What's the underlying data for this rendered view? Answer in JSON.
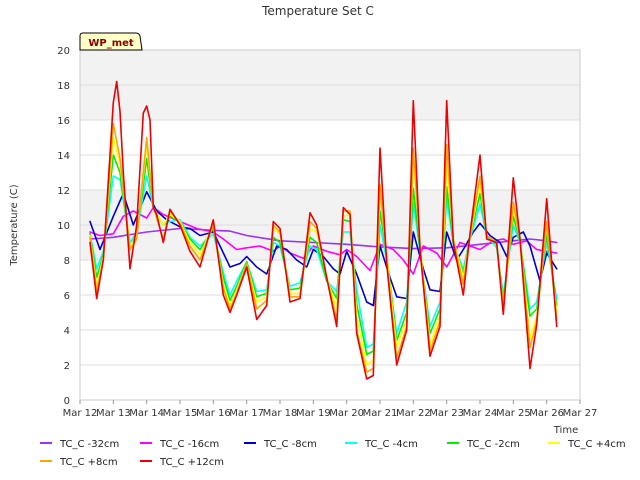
{
  "chart_data": {
    "type": "line",
    "title": "Temperature Set C",
    "xlabel": "Time",
    "ylabel": "Temperature (C)",
    "ylim": [
      0,
      20
    ],
    "xlim": [
      12,
      27
    ],
    "yticks": [
      0,
      2,
      4,
      6,
      8,
      10,
      12,
      14,
      16,
      18,
      20
    ],
    "xticks": [
      12,
      13,
      14,
      15,
      16,
      17,
      18,
      19,
      20,
      21,
      22,
      23,
      24,
      25,
      26,
      27
    ],
    "xtick_labels": [
      "Mar 12",
      "Mar 13",
      "Mar 14",
      "Mar 15",
      "Mar 16",
      "Mar 17",
      "Mar 18",
      "Mar 19",
      "Mar 20",
      "Mar 21",
      "Mar 22",
      "Mar 23",
      "Mar 24",
      "Mar 25",
      "Mar 26",
      "Mar 27"
    ],
    "shaded_bands": [
      [
        8,
        12
      ],
      [
        16,
        20
      ]
    ],
    "badge": "WP_met",
    "legend_position": "bottom",
    "series": [
      {
        "name": "TC_C -32cm",
        "color": "#9b30ff",
        "x": [
          12.3,
          13,
          14,
          15,
          16,
          16.5,
          17,
          18,
          19,
          20,
          21,
          22,
          23,
          24,
          25,
          25.5,
          26,
          26.3
        ],
        "y": [
          9.2,
          9.3,
          9.6,
          9.8,
          9.7,
          9.65,
          9.4,
          9.1,
          9.0,
          8.9,
          8.75,
          8.65,
          8.7,
          8.9,
          9.1,
          9.2,
          9.1,
          9.0
        ]
      },
      {
        "name": "TC_C -16cm",
        "color": "#ff00ff",
        "x": [
          12.3,
          12.6,
          13.0,
          13.3,
          13.6,
          14.0,
          14.2,
          14.5,
          15.0,
          15.5,
          16.0,
          16.3,
          16.7,
          17.0,
          17.4,
          17.8,
          18.0,
          18.3,
          18.7,
          19.0,
          19.4,
          19.8,
          20.0,
          20.3,
          20.7,
          21.0,
          21.4,
          21.7,
          22.0,
          22.3,
          22.7,
          23.0,
          23.4,
          23.7,
          24.0,
          24.4,
          24.7,
          25.0,
          25.4,
          25.7,
          26.0,
          26.3
        ],
        "y": [
          9.6,
          9.4,
          9.5,
          10.5,
          10.8,
          10.4,
          11.0,
          10.6,
          10.2,
          9.8,
          9.6,
          9.2,
          8.6,
          8.7,
          8.8,
          8.5,
          8.8,
          8.4,
          8.1,
          8.8,
          8.5,
          8.3,
          8.6,
          8.2,
          7.4,
          8.9,
          8.6,
          8.0,
          7.2,
          8.8,
          8.4,
          7.6,
          9.0,
          8.8,
          8.6,
          9.1,
          9.2,
          8.9,
          9.1,
          8.6,
          8.5,
          8.4
        ]
      },
      {
        "name": "TC_C -8cm",
        "color": "#0000cd",
        "x": [
          12.3,
          12.6,
          13.0,
          13.3,
          13.6,
          14.0,
          14.3,
          14.6,
          15.0,
          15.3,
          15.6,
          16.0,
          16.2,
          16.5,
          16.8,
          17.0,
          17.3,
          17.6,
          17.9,
          18.2,
          18.5,
          18.8,
          19.0,
          19.3,
          19.6,
          19.8,
          20.0,
          20.3,
          20.6,
          20.8,
          21.0,
          21.3,
          21.5,
          21.8,
          22.0,
          22.3,
          22.5,
          22.8,
          23.0,
          23.3,
          23.5,
          23.8,
          24.0,
          24.3,
          24.6,
          24.8,
          25.0,
          25.3,
          25.5,
          25.8,
          26.0,
          26.3
        ],
        "y": [
          10.2,
          8.6,
          10.5,
          11.8,
          10.0,
          11.9,
          10.8,
          10.3,
          9.9,
          9.8,
          9.4,
          9.6,
          8.8,
          7.6,
          7.8,
          8.2,
          7.6,
          7.2,
          8.8,
          8.6,
          8.0,
          7.6,
          8.6,
          8.2,
          7.5,
          7.2,
          8.5,
          7.2,
          5.6,
          5.4,
          8.8,
          7.0,
          5.9,
          5.8,
          9.6,
          7.5,
          6.3,
          6.2,
          9.6,
          8.0,
          8.6,
          9.6,
          10.1,
          9.4,
          9.0,
          8.2,
          9.3,
          9.6,
          8.8,
          6.8,
          8.4,
          7.5
        ]
      },
      {
        "name": "TC_C -4cm",
        "color": "#00ffff",
        "x": [
          12.3,
          12.5,
          12.7,
          13.0,
          13.2,
          13.5,
          13.7,
          14.0,
          14.2,
          14.5,
          14.7,
          15.0,
          15.3,
          15.6,
          16.0,
          16.3,
          16.5,
          16.7,
          17.0,
          17.3,
          17.6,
          17.8,
          18.0,
          18.3,
          18.6,
          18.9,
          19.1,
          19.4,
          19.7,
          19.9,
          20.1,
          20.3,
          20.6,
          20.8,
          21.0,
          21.2,
          21.5,
          21.8,
          22.0,
          22.2,
          22.5,
          22.8,
          23.0,
          23.2,
          23.5,
          23.7,
          24.0,
          24.2,
          24.5,
          24.7,
          25.0,
          25.2,
          25.5,
          25.7,
          26.0,
          26.3
        ],
        "y": [
          9.5,
          7.5,
          8.5,
          12.8,
          12.6,
          9.0,
          9.6,
          12.8,
          11.0,
          10.0,
          10.2,
          10.3,
          9.3,
          8.8,
          9.5,
          7.3,
          6.0,
          6.8,
          7.9,
          6.2,
          6.3,
          9.0,
          8.8,
          6.5,
          6.7,
          8.8,
          8.6,
          6.8,
          6.2,
          9.6,
          9.6,
          6.3,
          3.0,
          3.2,
          10.0,
          8.0,
          3.8,
          5.6,
          11.3,
          8.5,
          4.2,
          5.6,
          11.5,
          8.9,
          7.5,
          9.2,
          11.2,
          9.4,
          8.7,
          6.0,
          10.0,
          9.0,
          5.2,
          5.6,
          9.0,
          5.8
        ]
      },
      {
        "name": "TC_C -2cm",
        "color": "#00ee00",
        "x": [
          12.3,
          12.5,
          12.7,
          13.0,
          13.2,
          13.5,
          13.7,
          14.0,
          14.2,
          14.5,
          14.7,
          15.0,
          15.3,
          15.6,
          16.0,
          16.3,
          16.5,
          16.7,
          17.0,
          17.3,
          17.6,
          17.8,
          18.0,
          18.3,
          18.6,
          18.9,
          19.1,
          19.4,
          19.7,
          19.9,
          20.1,
          20.3,
          20.6,
          20.8,
          21.0,
          21.2,
          21.5,
          21.8,
          22.0,
          22.2,
          22.5,
          22.8,
          23.0,
          23.2,
          23.5,
          23.7,
          24.0,
          24.2,
          24.5,
          24.7,
          25.0,
          25.2,
          25.5,
          25.7,
          26.0,
          26.3
        ],
        "y": [
          9.5,
          7.0,
          8.3,
          14.0,
          13.0,
          8.8,
          9.4,
          13.8,
          11.0,
          10.0,
          10.5,
          10.2,
          9.2,
          8.6,
          9.8,
          7.0,
          5.7,
          6.5,
          7.9,
          5.9,
          6.1,
          9.3,
          9.0,
          6.3,
          6.4,
          9.3,
          9.0,
          6.8,
          5.8,
          10.3,
          10.2,
          5.5,
          2.6,
          2.8,
          10.8,
          8.3,
          3.4,
          5.0,
          12.1,
          8.6,
          3.8,
          5.2,
          12.2,
          9.0,
          7.2,
          9.3,
          11.8,
          9.4,
          8.9,
          5.6,
          10.5,
          9.1,
          4.8,
          5.2,
          9.5,
          5.4
        ]
      },
      {
        "name": "TC_C +4cm",
        "color": "#ffff00",
        "x": [
          12.3,
          12.5,
          12.7,
          13.0,
          13.2,
          13.5,
          13.7,
          14.0,
          14.2,
          14.5,
          14.7,
          15.0,
          15.3,
          15.6,
          16.0,
          16.3,
          16.5,
          16.7,
          17.0,
          17.3,
          17.6,
          17.8,
          18.0,
          18.3,
          18.6,
          18.9,
          19.1,
          19.4,
          19.7,
          19.9,
          20.1,
          20.3,
          20.6,
          20.8,
          21.0,
          21.2,
          21.5,
          21.8,
          22.0,
          22.2,
          22.5,
          22.8,
          23.0,
          23.2,
          23.5,
          23.7,
          24.0,
          24.2,
          24.5,
          24.7,
          25.0,
          25.2,
          25.5,
          25.7,
          26.0,
          26.3
        ],
        "y": [
          9.4,
          6.5,
          8.2,
          15.0,
          13.5,
          8.8,
          9.3,
          14.6,
          11.0,
          10.0,
          10.6,
          10.2,
          9.0,
          8.3,
          10.0,
          6.6,
          5.4,
          6.3,
          7.8,
          5.6,
          5.9,
          9.8,
          9.5,
          6.1,
          6.1,
          9.8,
          9.6,
          7.0,
          5.2,
          10.5,
          10.6,
          4.8,
          2.0,
          2.3,
          11.8,
          8.2,
          3.0,
          4.6,
          13.8,
          8.9,
          3.2,
          4.8,
          13.4,
          9.2,
          7.0,
          9.3,
          12.4,
          9.4,
          9.0,
          5.3,
          11.0,
          9.2,
          3.5,
          4.8,
          10.0,
          5.0
        ]
      },
      {
        "name": "TC_C +8cm",
        "color": "#ffa500",
        "x": [
          12.3,
          12.5,
          12.7,
          13.0,
          13.2,
          13.5,
          13.7,
          14.0,
          14.2,
          14.5,
          14.7,
          15.0,
          15.3,
          15.6,
          16.0,
          16.3,
          16.5,
          16.7,
          17.0,
          17.3,
          17.6,
          17.8,
          18.0,
          18.3,
          18.6,
          18.9,
          19.1,
          19.4,
          19.7,
          19.9,
          20.1,
          20.3,
          20.6,
          20.8,
          21.0,
          21.2,
          21.5,
          21.8,
          22.0,
          22.2,
          22.5,
          22.8,
          23.0,
          23.2,
          23.5,
          23.7,
          24.0,
          24.2,
          24.5,
          24.7,
          25.0,
          25.2,
          25.5,
          25.7,
          26.0,
          26.3
        ],
        "y": [
          9.3,
          6.2,
          8.0,
          15.8,
          13.8,
          8.6,
          9.2,
          15.0,
          11.0,
          9.2,
          10.8,
          10.1,
          8.8,
          8.0,
          10.0,
          6.4,
          5.2,
          6.1,
          7.8,
          5.2,
          5.7,
          10.0,
          9.6,
          5.9,
          5.9,
          10.2,
          9.8,
          7.0,
          4.6,
          10.8,
          10.8,
          4.0,
          1.6,
          1.8,
          12.3,
          8.0,
          2.4,
          4.2,
          14.4,
          8.8,
          2.8,
          4.5,
          14.6,
          9.2,
          6.6,
          9.4,
          12.8,
          9.4,
          9.0,
          5.1,
          11.3,
          9.2,
          3.0,
          4.5,
          10.2,
          4.6
        ]
      },
      {
        "name": "TC_C +12cm",
        "color": "#ee0000",
        "x": [
          12.3,
          12.5,
          12.7,
          12.9,
          13.0,
          13.1,
          13.2,
          13.3,
          13.5,
          13.7,
          13.9,
          14.0,
          14.1,
          14.2,
          14.3,
          14.5,
          14.7,
          15.0,
          15.3,
          15.6,
          16.0,
          16.3,
          16.5,
          16.7,
          17.0,
          17.3,
          17.6,
          17.8,
          18.0,
          18.3,
          18.6,
          18.9,
          19.1,
          19.4,
          19.7,
          19.9,
          20.1,
          20.3,
          20.6,
          20.8,
          21.0,
          21.2,
          21.5,
          21.8,
          22.0,
          22.2,
          22.5,
          22.8,
          23.0,
          23.2,
          23.5,
          23.7,
          24.0,
          24.2,
          24.5,
          24.7,
          25.0,
          25.2,
          25.5,
          25.7,
          26.0,
          26.3
        ],
        "y": [
          9.0,
          5.8,
          8.0,
          14.0,
          17.0,
          18.2,
          16.5,
          13.0,
          7.5,
          10.0,
          16.4,
          16.8,
          16.0,
          11.0,
          10.6,
          9.0,
          10.9,
          10.0,
          8.5,
          7.6,
          10.3,
          6.0,
          5.0,
          6.0,
          7.6,
          4.6,
          5.4,
          10.2,
          9.8,
          5.6,
          5.8,
          10.7,
          10.0,
          7.0,
          4.2,
          11.0,
          10.6,
          3.8,
          1.2,
          1.4,
          14.4,
          7.8,
          2.0,
          4.0,
          17.1,
          8.6,
          2.5,
          4.2,
          17.1,
          9.0,
          6.0,
          9.5,
          14.0,
          9.2,
          9.0,
          4.9,
          12.7,
          9.2,
          1.8,
          4.3,
          11.5,
          4.2
        ]
      }
    ]
  }
}
